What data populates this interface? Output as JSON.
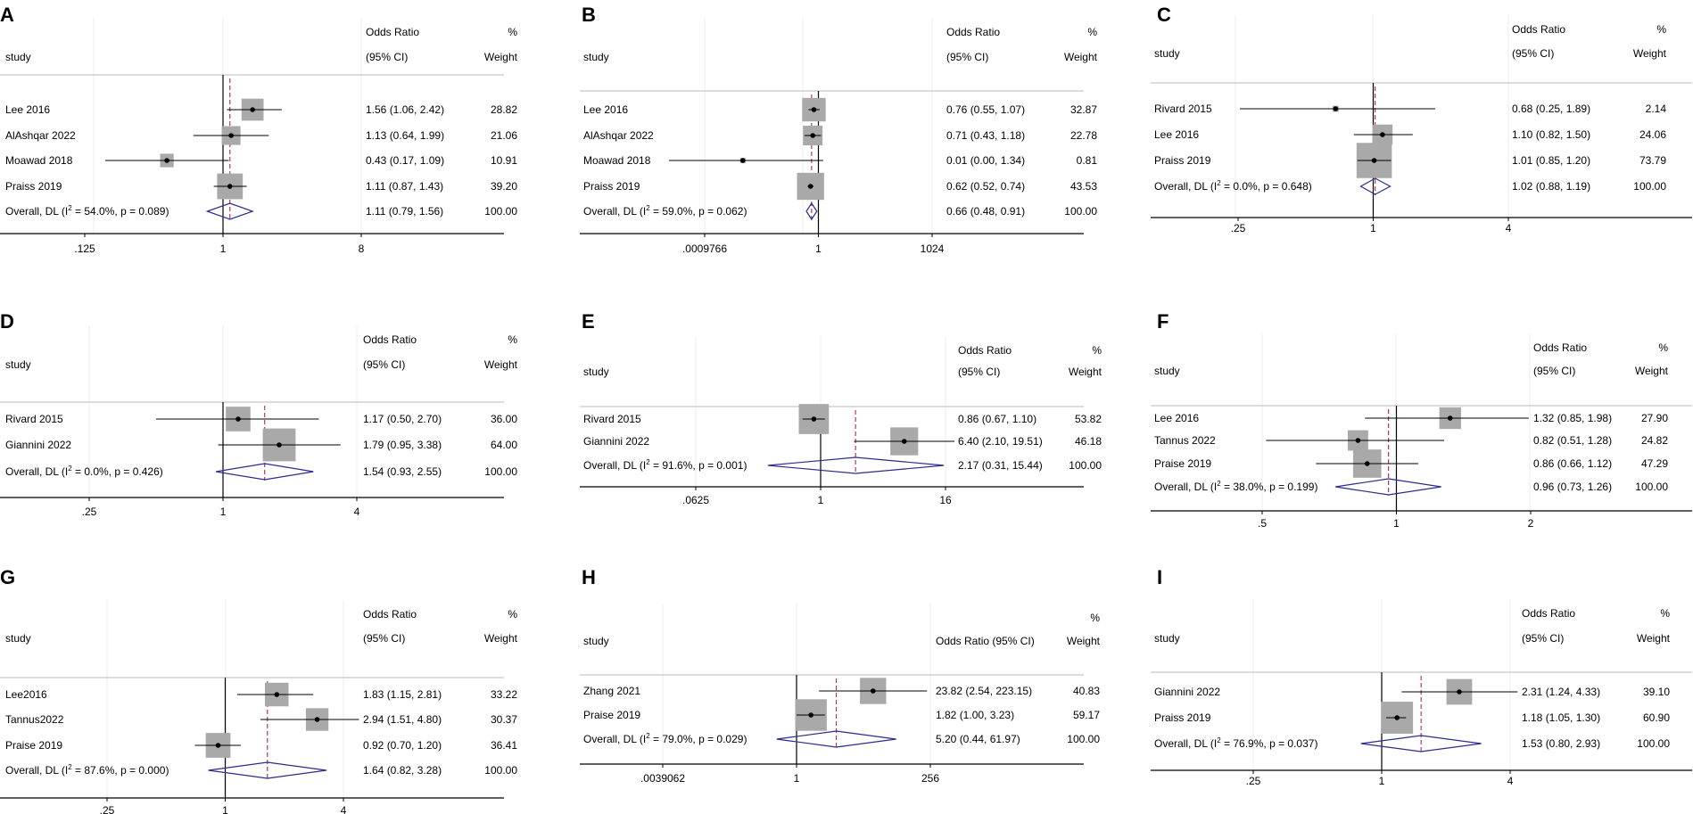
{
  "colors": {
    "text": "#000000",
    "axis": "#000000",
    "ci_line": "#000000",
    "box": "#a9a9a9",
    "diamond": "#2b2b8f",
    "ref_line": "#b0284f",
    "grid": "#ececec"
  },
  "chart_data": [
    {
      "type": "forest",
      "panel": "A",
      "scale": "log2",
      "col_headers": {
        "study": "study",
        "or_top": "Odds Ratio",
        "or_bottom": "(95% CI)",
        "w_top": "%",
        "w_bottom": "Weight"
      },
      "ticks": [
        {
          "v": 0.125,
          "label": ".125"
        },
        {
          "v": 1,
          "label": "1"
        },
        {
          "v": 8,
          "label": "8"
        }
      ],
      "studies": [
        {
          "label": "Lee 2016",
          "or": 1.56,
          "lo": 1.06,
          "hi": 2.42,
          "text": "1.56 (1.06, 2.42)",
          "weight": "28.82",
          "w": 28.82
        },
        {
          "label": "AlAshqar 2022",
          "or": 1.13,
          "lo": 0.64,
          "hi": 1.99,
          "text": "1.13 (0.64, 1.99)",
          "weight": "21.06",
          "w": 21.06
        },
        {
          "label": "Moawad 2018",
          "or": 0.43,
          "lo": 0.17,
          "hi": 1.09,
          "text": "0.43 (0.17, 1.09)",
          "weight": "10.91",
          "w": 10.91
        },
        {
          "label": "Praiss 2019",
          "or": 1.11,
          "lo": 0.87,
          "hi": 1.43,
          "text": "1.11 (0.87, 1.43)",
          "weight": "39.20",
          "w": 39.2
        }
      ],
      "overall": {
        "prefix": "Overall, DL (I",
        "sup": "2",
        "suffix": " = 54.0%, p = 0.089)",
        "or": 1.11,
        "lo": 0.79,
        "hi": 1.56,
        "text": "1.11 (0.79, 1.56)",
        "weight": "100.00"
      }
    },
    {
      "type": "forest",
      "panel": "B",
      "scale": "log2",
      "col_headers": {
        "study": "study",
        "or_top": "Odds Ratio",
        "or_bottom": "(95% CI)",
        "w_top": "%",
        "w_bottom": "Weight"
      },
      "ticks": [
        {
          "v": 0.0009766,
          "label": ".0009766"
        },
        {
          "v": 1,
          "label": "1"
        },
        {
          "v": 1024,
          "label": "1024"
        }
      ],
      "studies": [
        {
          "label": "Lee 2016",
          "or": 0.76,
          "lo": 0.55,
          "hi": 1.07,
          "text": "0.76 (0.55, 1.07)",
          "weight": "32.87",
          "w": 32.87
        },
        {
          "label": "AlAshqar 2022",
          "or": 0.71,
          "lo": 0.43,
          "hi": 1.18,
          "text": "0.71 (0.43, 1.18)",
          "weight": "22.78",
          "w": 22.78
        },
        {
          "label": "Moawad 2018",
          "or": 0.01,
          "lo": 0.0,
          "hi": 1.34,
          "text": "0.01 (0.00, 1.34)",
          "weight": "0.81",
          "w": 0.81
        },
        {
          "label": "Praiss 2019",
          "or": 0.62,
          "lo": 0.52,
          "hi": 0.74,
          "text": "0.62 (0.52, 0.74)",
          "weight": "43.53",
          "w": 43.53
        }
      ],
      "overall": {
        "prefix": "Overall, DL (I",
        "sup": "2",
        "suffix": " = 59.0%, p = 0.062)",
        "or": 0.66,
        "lo": 0.48,
        "hi": 0.91,
        "text": "0.66 (0.48, 0.91)",
        "weight": "100.00"
      }
    },
    {
      "type": "forest",
      "panel": "C",
      "scale": "log2",
      "col_headers": {
        "study": "study",
        "or_top": "Odds Ratio",
        "or_bottom": "(95% CI)",
        "w_top": "%",
        "w_bottom": "Weight"
      },
      "ticks": [
        {
          "v": 0.25,
          "label": ".25"
        },
        {
          "v": 1,
          "label": "1"
        },
        {
          "v": 4,
          "label": "4"
        }
      ],
      "studies": [
        {
          "label": "Rivard 2015",
          "or": 0.68,
          "lo": 0.25,
          "hi": 1.89,
          "text": "0.68 (0.25, 1.89)",
          "weight": "2.14",
          "w": 2.14
        },
        {
          "label": "Lee 2016",
          "or": 1.1,
          "lo": 0.82,
          "hi": 1.5,
          "text": "1.10 (0.82, 1.50)",
          "weight": "24.06",
          "w": 24.06
        },
        {
          "label": "Praiss 2019",
          "or": 1.01,
          "lo": 0.85,
          "hi": 1.2,
          "text": "1.01 (0.85, 1.20)",
          "weight": "73.79",
          "w": 73.79
        }
      ],
      "overall": {
        "prefix": "Overall, DL (I",
        "sup": "2",
        "suffix": " = 0.0%, p = 0.648)",
        "or": 1.02,
        "lo": 0.88,
        "hi": 1.19,
        "text": "1.02 (0.88, 1.19)",
        "weight": "100.00"
      }
    },
    {
      "type": "forest",
      "panel": "D",
      "scale": "log2",
      "col_headers": {
        "study": "study",
        "or_top": "Odds Ratio",
        "or_bottom": "(95% CI)",
        "w_top": "%",
        "w_bottom": "Weight"
      },
      "ticks": [
        {
          "v": 0.25,
          "label": ".25"
        },
        {
          "v": 1,
          "label": "1"
        },
        {
          "v": 4,
          "label": "4"
        }
      ],
      "studies": [
        {
          "label": "Rivard 2015",
          "or": 1.17,
          "lo": 0.5,
          "hi": 2.7,
          "text": "1.17 (0.50, 2.70)",
          "weight": "36.00",
          "w": 36.0
        },
        {
          "label": "Giannini 2022",
          "or": 1.79,
          "lo": 0.95,
          "hi": 3.38,
          "text": "1.79 (0.95, 3.38)",
          "weight": "64.00",
          "w": 64.0
        }
      ],
      "overall": {
        "prefix": "Overall, DL (I",
        "sup": "2",
        "suffix": " = 0.0%, p = 0.426)",
        "or": 1.54,
        "lo": 0.93,
        "hi": 2.55,
        "text": "1.54 (0.93, 2.55)",
        "weight": "100.00"
      }
    },
    {
      "type": "forest",
      "panel": "E",
      "scale": "log2",
      "col_headers": {
        "study": "study",
        "or_top": "Odds Ratio",
        "or_bottom": "(95% CI)",
        "w_top": "%",
        "w_bottom": "Weight"
      },
      "ticks": [
        {
          "v": 0.0625,
          "label": ".0625"
        },
        {
          "v": 1,
          "label": "1"
        },
        {
          "v": 16,
          "label": "16"
        }
      ],
      "studies": [
        {
          "label": "Rivard 2015",
          "or": 0.86,
          "lo": 0.67,
          "hi": 1.1,
          "text": "0.86 (0.67, 1.10)",
          "weight": "53.82",
          "w": 53.82
        },
        {
          "label": "Giannini 2022",
          "or": 6.4,
          "lo": 2.1,
          "hi": 19.51,
          "text": "6.40 (2.10, 19.51)",
          "weight": "46.18",
          "w": 46.18
        }
      ],
      "overall": {
        "prefix": "Overall, DL (I",
        "sup": "2",
        "suffix": " = 91.6%, p = 0.001)",
        "or": 2.17,
        "lo": 0.31,
        "hi": 15.44,
        "text": "2.17 (0.31, 15.44)",
        "weight": "100.00"
      }
    },
    {
      "type": "forest",
      "panel": "F",
      "scale": "log2",
      "col_headers": {
        "study": "study",
        "or_top": "Odds Ratio",
        "or_bottom": "(95% CI)",
        "w_top": "%",
        "w_bottom": "Weight"
      },
      "ticks": [
        {
          "v": 0.5,
          "label": ".5"
        },
        {
          "v": 1,
          "label": "1"
        },
        {
          "v": 2,
          "label": "2"
        }
      ],
      "studies": [
        {
          "label": "Lee 2016",
          "or": 1.32,
          "lo": 0.85,
          "hi": 1.98,
          "text": "1.32 (0.85, 1.98)",
          "weight": "27.90",
          "w": 27.9
        },
        {
          "label": "Tannus 2022",
          "or": 0.82,
          "lo": 0.51,
          "hi": 1.28,
          "text": "0.82 (0.51, 1.28)",
          "weight": "24.82",
          "w": 24.82
        },
        {
          "label": "Praise 2019",
          "or": 0.86,
          "lo": 0.66,
          "hi": 1.12,
          "text": "0.86 (0.66, 1.12)",
          "weight": "47.29",
          "w": 47.29
        }
      ],
      "overall": {
        "prefix": "Overall, DL (I",
        "sup": "2",
        "suffix": " = 38.0%, p = 0.199)",
        "or": 0.96,
        "lo": 0.73,
        "hi": 1.26,
        "text": "0.96 (0.73, 1.26)",
        "weight": "100.00"
      }
    },
    {
      "type": "forest",
      "panel": "G",
      "scale": "log2",
      "col_headers": {
        "study": "study",
        "or_top": "Odds Ratio",
        "or_bottom": "(95% CI)",
        "w_top": "%",
        "w_bottom": "Weight"
      },
      "ticks": [
        {
          "v": 0.25,
          "label": ".25"
        },
        {
          "v": 1,
          "label": "1"
        },
        {
          "v": 4,
          "label": "4"
        }
      ],
      "studies": [
        {
          "label": "Lee2016",
          "or": 1.83,
          "lo": 1.15,
          "hi": 2.81,
          "text": "1.83 (1.15, 2.81)",
          "weight": "33.22",
          "w": 33.22
        },
        {
          "label": "Tannus2022",
          "or": 2.94,
          "lo": 1.51,
          "hi": 4.8,
          "text": "2.94 (1.51, 4.80)",
          "weight": "30.37",
          "w": 30.37
        },
        {
          "label": "Praise 2019",
          "or": 0.92,
          "lo": 0.7,
          "hi": 1.2,
          "text": "0.92 (0.70, 1.20)",
          "weight": "36.41",
          "w": 36.41
        }
      ],
      "overall": {
        "prefix": "Overall, DL (I",
        "sup": "2",
        "suffix": " = 87.6%, p = 0.000)",
        "or": 1.64,
        "lo": 0.82,
        "hi": 3.28,
        "text": "1.64 (0.82, 3.28)",
        "weight": "100.00"
      }
    },
    {
      "type": "forest",
      "panel": "H",
      "scale": "log2",
      "single_header": true,
      "col_headers": {
        "study": "study",
        "or_top": "",
        "or_bottom": "Odds Ratio (95% CI)",
        "w_top": "%",
        "w_bottom": "Weight"
      },
      "ticks": [
        {
          "v": 0.0039062,
          "label": ".0039062"
        },
        {
          "v": 1,
          "label": "1"
        },
        {
          "v": 256,
          "label": "256"
        }
      ],
      "studies": [
        {
          "label": "Zhang 2021",
          "or": 23.82,
          "lo": 2.54,
          "hi": 223.15,
          "text": "23.82 (2.54, 223.15)",
          "weight": "40.83",
          "w": 40.83
        },
        {
          "label": "Praise 2019",
          "or": 1.82,
          "lo": 1.0,
          "hi": 3.23,
          "text": "1.82 (1.00, 3.23)",
          "weight": "59.17",
          "w": 59.17
        }
      ],
      "overall": {
        "prefix": "Overall, DL (I",
        "sup": "2",
        "suffix": " = 79.0%, p = 0.029)",
        "or": 5.2,
        "lo": 0.44,
        "hi": 61.97,
        "text": "5.20 (0.44, 61.97)",
        "weight": "100.00"
      }
    },
    {
      "type": "forest",
      "panel": "I",
      "scale": "log2",
      "col_headers": {
        "study": "study",
        "or_top": "Odds Ratio",
        "or_bottom": "(95% CI)",
        "w_top": "%",
        "w_bottom": "Weight"
      },
      "ticks": [
        {
          "v": 0.25,
          "label": ".25"
        },
        {
          "v": 1,
          "label": "1"
        },
        {
          "v": 4,
          "label": "4"
        }
      ],
      "studies": [
        {
          "label": "Giannini 2022",
          "or": 2.31,
          "lo": 1.24,
          "hi": 4.33,
          "text": "2.31 (1.24, 4.33)",
          "weight": "39.10",
          "w": 39.1
        },
        {
          "label": "Praiss 2019",
          "or": 1.18,
          "lo": 1.05,
          "hi": 1.3,
          "text": "1.18 (1.05, 1.30)",
          "weight": "60.90",
          "w": 60.9
        }
      ],
      "overall": {
        "prefix": "Overall, DL (I",
        "sup": "2",
        "suffix": " = 76.9%, p = 0.037)",
        "or": 1.53,
        "lo": 0.8,
        "hi": 2.93,
        "text": "1.53 (0.80, 2.93)",
        "weight": "100.00"
      }
    }
  ]
}
